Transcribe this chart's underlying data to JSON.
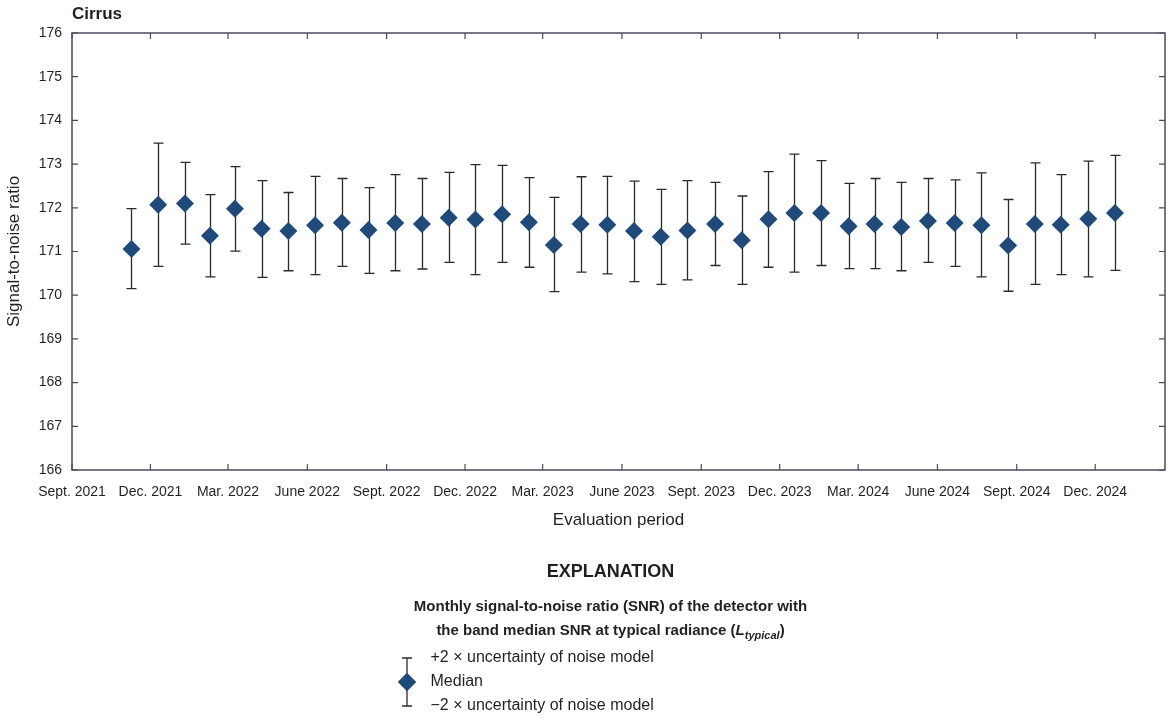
{
  "chart_data": {
    "type": "scatter",
    "title": "Cirrus",
    "xlabel": "Evaluation period",
    "ylabel": "Signal-to-noise ratio",
    "legend_title": "EXPLANATION",
    "legend": "bottom",
    "marker": "diamond",
    "annotations": [
      "Monthly signal-to-noise ratio (SNR) of the detector with the band median SNR at typical radiance (L$_{typical}$)",
      "+2 × uncertainty of noise model",
      "−2 × uncertainty of noise model"
    ],
    "xlim": [
      "2021-09-01",
      "2025-02-20"
    ],
    "xticks": [
      {
        "value": "2021-09",
        "label": "Sept. 2021"
      },
      {
        "value": "2021-12",
        "label": "Dec. 2021"
      },
      {
        "value": "2022-03",
        "label": "Mar. 2022"
      },
      {
        "value": "2022-06",
        "label": "June 2022"
      },
      {
        "value": "2022-09",
        "label": "Sept. 2022"
      },
      {
        "value": "2022-12",
        "label": "Dec. 2022"
      },
      {
        "value": "2023-03",
        "label": "Mar. 2023"
      },
      {
        "value": "2023-06",
        "label": "June 2023"
      },
      {
        "value": "2023-09",
        "label": "Sept. 2023"
      },
      {
        "value": "2023-12",
        "label": "Dec. 2023"
      },
      {
        "value": "2024-03",
        "label": "Mar. 2024"
      },
      {
        "value": "2024-06",
        "label": "June 2024"
      },
      {
        "value": "2024-09",
        "label": "Sept. 2024"
      },
      {
        "value": "2024-12",
        "label": "Dec. 2024"
      }
    ],
    "ylim": [
      166,
      176
    ],
    "yticks": [
      166,
      167,
      168,
      169,
      170,
      171,
      172,
      173,
      174,
      175,
      176
    ],
    "x": [
      "2021-11-09",
      "2021-12-10",
      "2022-01-10",
      "2022-02-08",
      "2022-03-09",
      "2022-04-09",
      "2022-05-10",
      "2022-06-10",
      "2022-07-11",
      "2022-08-11",
      "2022-09-11",
      "2022-10-12",
      "2022-11-12",
      "2022-12-13",
      "2023-01-13",
      "2023-02-13",
      "2023-03-14",
      "2023-04-14",
      "2023-05-15",
      "2023-06-15",
      "2023-07-16",
      "2023-08-16",
      "2023-09-17",
      "2023-10-18",
      "2023-11-18",
      "2023-12-18",
      "2024-01-18",
      "2024-02-19",
      "2024-03-20",
      "2024-04-20",
      "2024-05-21",
      "2024-06-21",
      "2024-07-22",
      "2024-08-22",
      "2024-09-22",
      "2024-10-22",
      "2024-11-23",
      "2024-12-24"
    ],
    "series": [
      {
        "name": "Median",
        "color": "#1f4a7a",
        "values": [
          171.06,
          172.07,
          172.1,
          171.36,
          171.98,
          171.52,
          171.47,
          171.6,
          171.66,
          171.49,
          171.65,
          171.63,
          171.77,
          171.73,
          171.85,
          171.67,
          171.15,
          171.63,
          171.61,
          171.47,
          171.34,
          171.48,
          171.63,
          171.26,
          171.74,
          171.88,
          171.88,
          171.58,
          171.63,
          171.56,
          171.7,
          171.65,
          171.6,
          171.14,
          171.63,
          171.61,
          171.75,
          171.88
        ],
        "errors": [
          [
            170.15,
            171.98
          ],
          [
            170.66,
            173.48
          ],
          [
            171.17,
            173.04
          ],
          [
            170.42,
            172.3
          ],
          [
            171.01,
            172.94
          ],
          [
            170.41,
            172.62
          ],
          [
            170.56,
            172.35
          ],
          [
            170.47,
            172.72
          ],
          [
            170.66,
            172.67
          ],
          [
            170.5,
            172.46
          ],
          [
            170.56,
            172.76
          ],
          [
            170.6,
            172.67
          ],
          [
            170.75,
            172.81
          ],
          [
            170.47,
            172.99
          ],
          [
            170.75,
            172.97
          ],
          [
            170.64,
            172.69
          ],
          [
            170.08,
            172.24
          ],
          [
            170.53,
            172.71
          ],
          [
            170.49,
            172.72
          ],
          [
            170.31,
            172.61
          ],
          [
            170.25,
            172.42
          ],
          [
            170.35,
            172.62
          ],
          [
            170.68,
            172.58
          ],
          [
            170.25,
            172.27
          ],
          [
            170.64,
            172.83
          ],
          [
            170.53,
            173.23
          ],
          [
            170.68,
            173.08
          ],
          [
            170.61,
            172.56
          ],
          [
            170.61,
            172.67
          ],
          [
            170.56,
            172.58
          ],
          [
            170.75,
            172.67
          ],
          [
            170.66,
            172.64
          ],
          [
            170.42,
            172.8
          ],
          [
            170.09,
            172.19
          ],
          [
            170.25,
            173.03
          ],
          [
            170.47,
            172.76
          ],
          [
            170.42,
            173.07
          ],
          [
            170.57,
            173.2
          ]
        ]
      }
    ]
  }
}
